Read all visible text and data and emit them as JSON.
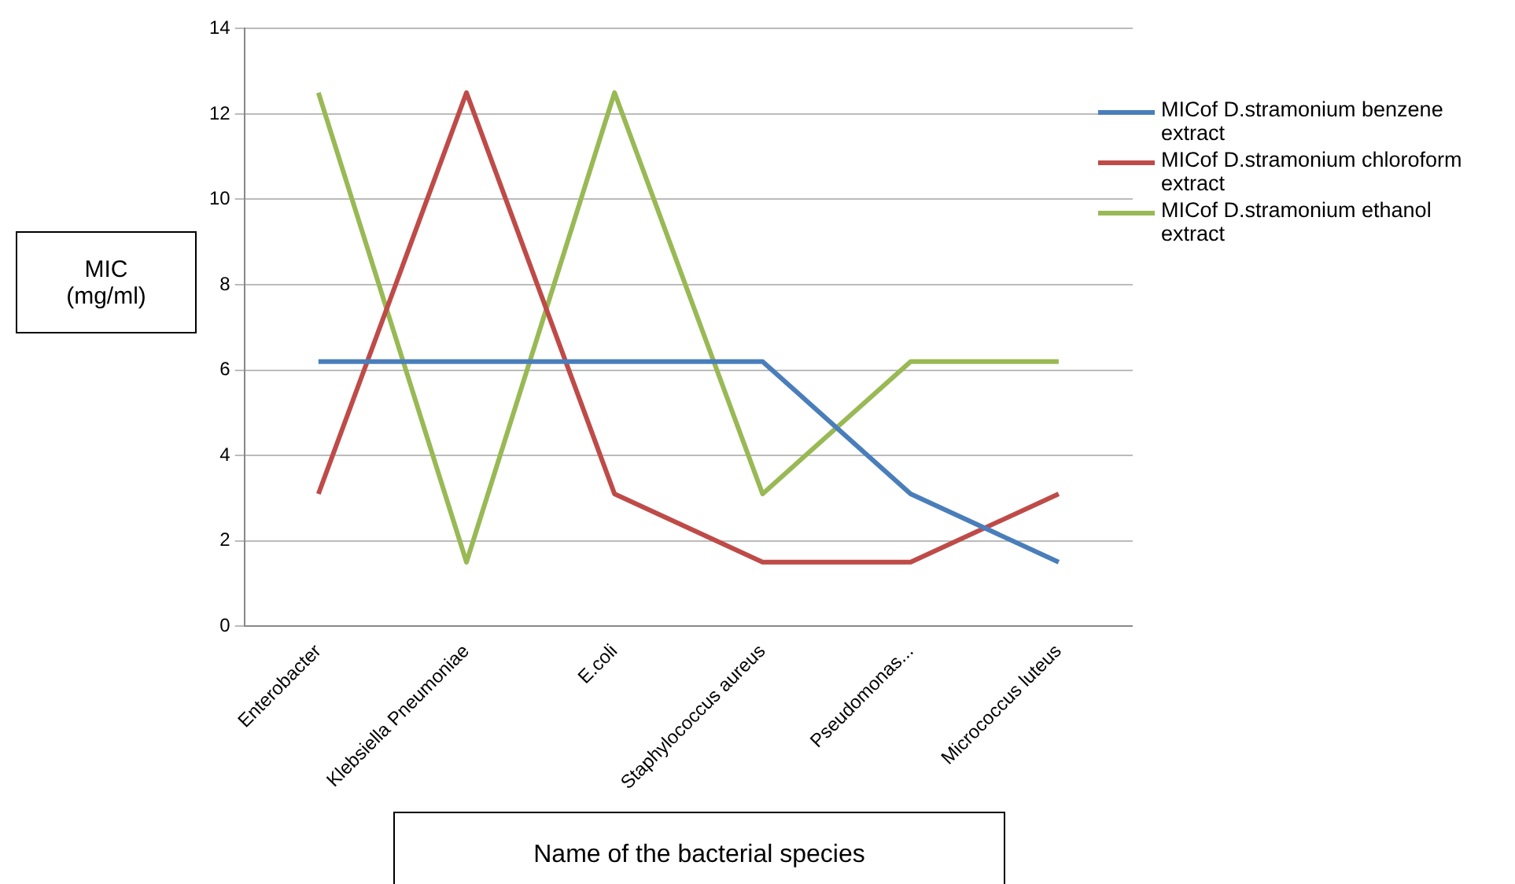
{
  "chart_data": {
    "type": "line",
    "xlabel": "Name of the bacterial species",
    "ylabel": "MIC (mg/ml)",
    "categories": [
      "Enterobacter",
      "Klebsiella Pneumoniae",
      "E.coli",
      "Staphylococcus aureus",
      "Pseudomonas...",
      "Micrococcus luteus"
    ],
    "series": [
      {
        "name": "MICof D.stramonium benzene extract",
        "color": "#4a7ebb",
        "values": [
          6.2,
          6.2,
          6.2,
          6.2,
          3.1,
          1.5
        ]
      },
      {
        "name": "MICof D.stramonium chloroform extract",
        "color": "#be4b48",
        "values": [
          3.1,
          12.5,
          3.1,
          1.5,
          1.5,
          3.1
        ]
      },
      {
        "name": "MICof D.stramonium ethanol extract",
        "color": "#98b954",
        "values": [
          12.5,
          1.5,
          12.5,
          3.1,
          6.2,
          6.2
        ]
      }
    ],
    "ylim": [
      0,
      14
    ],
    "yticks": [
      0,
      2,
      4,
      6,
      8,
      10,
      12,
      14
    ],
    "grid": "y",
    "legend": "right",
    "marker": "none",
    "line_style": "solid"
  }
}
